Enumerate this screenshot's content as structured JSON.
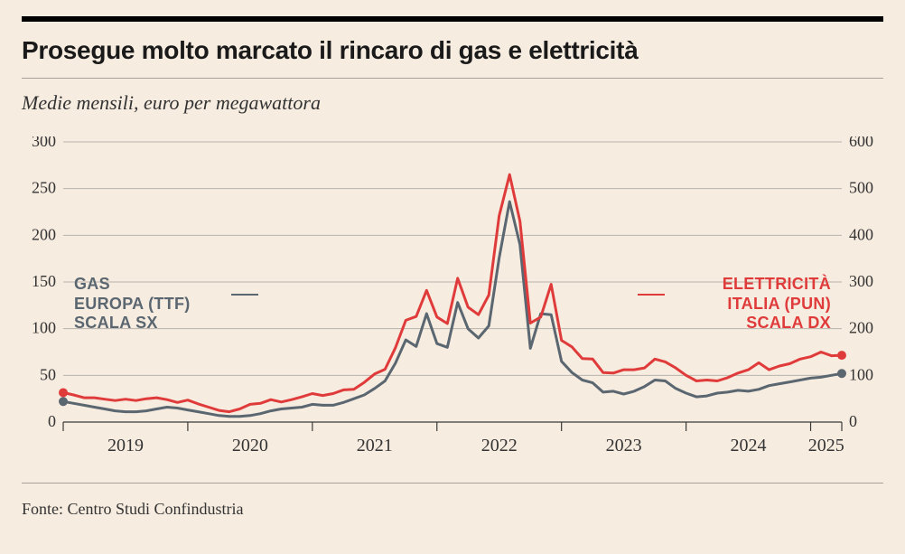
{
  "title": "Prosegue molto marcato il rincaro di gas e elettricità",
  "subtitle": "Medie mensili, euro per megawattora",
  "source": "Fonte: Centro Studi Confindustria",
  "chart": {
    "type": "line",
    "background_color": "#f7ece0",
    "grid_color": "#8f8f88",
    "axis_color": "#3a3a36",
    "tick_font_size": 18,
    "x": {
      "labels": [
        "2019",
        "2020",
        "2021",
        "2022",
        "2023",
        "2024",
        "2025"
      ],
      "min_index": 0,
      "max_index": 75,
      "year_start_indices": [
        0,
        12,
        24,
        36,
        48,
        60,
        72
      ]
    },
    "left_axis": {
      "label_lines": [
        "GAS",
        "EUROPA (TTF)",
        "SCALA SX"
      ],
      "label_color": "#5a6670",
      "min": 0,
      "max": 300,
      "ticks": [
        0,
        50,
        100,
        150,
        200,
        250,
        300
      ]
    },
    "right_axis": {
      "label_lines": [
        "ELETTRICITÀ",
        "ITALIA (PUN)",
        "SCALA DX"
      ],
      "label_color": "#e03b3b",
      "min": 0,
      "max": 600,
      "ticks": [
        0,
        100,
        200,
        300,
        400,
        500,
        600
      ]
    },
    "series": [
      {
        "name": "gas",
        "axis": "left",
        "color": "#5a6670",
        "line_width": 3,
        "marker_end": true,
        "marker_start": true,
        "marker_radius": 5,
        "values": [
          22,
          20,
          18,
          16,
          14,
          12,
          11,
          11,
          12,
          14,
          16,
          15,
          13,
          11,
          9,
          7,
          6,
          6,
          7,
          9,
          12,
          14,
          15,
          16,
          19,
          18,
          18,
          21,
          25,
          29,
          36,
          44,
          63,
          88,
          81,
          116,
          84,
          80,
          128,
          100,
          90,
          103,
          176,
          236,
          190,
          79,
          116,
          115,
          65,
          53,
          45,
          42,
          32,
          33,
          30,
          33,
          38,
          45,
          44,
          36,
          31,
          27,
          28,
          31,
          32,
          34,
          33,
          35,
          39,
          41,
          43,
          45,
          47,
          48,
          50,
          52
        ]
      },
      {
        "name": "elec",
        "axis": "right",
        "color": "#e03b3b",
        "line_width": 3,
        "marker_end": true,
        "marker_start": true,
        "marker_radius": 5,
        "values": [
          63,
          58,
          52,
          52,
          49,
          46,
          49,
          46,
          50,
          52,
          48,
          42,
          47,
          39,
          32,
          25,
          22,
          28,
          38,
          40,
          48,
          43,
          48,
          54,
          61,
          57,
          61,
          69,
          70,
          85,
          103,
          113,
          159,
          218,
          226,
          282,
          225,
          211,
          308,
          246,
          230,
          272,
          442,
          530,
          430,
          212,
          225,
          295,
          175,
          161,
          136,
          135,
          106,
          105,
          112,
          112,
          116,
          135,
          129,
          116,
          100,
          88,
          90,
          88,
          95,
          105,
          112,
          127,
          112,
          120,
          125,
          135,
          140,
          150,
          142,
          143
        ]
      }
    ]
  }
}
